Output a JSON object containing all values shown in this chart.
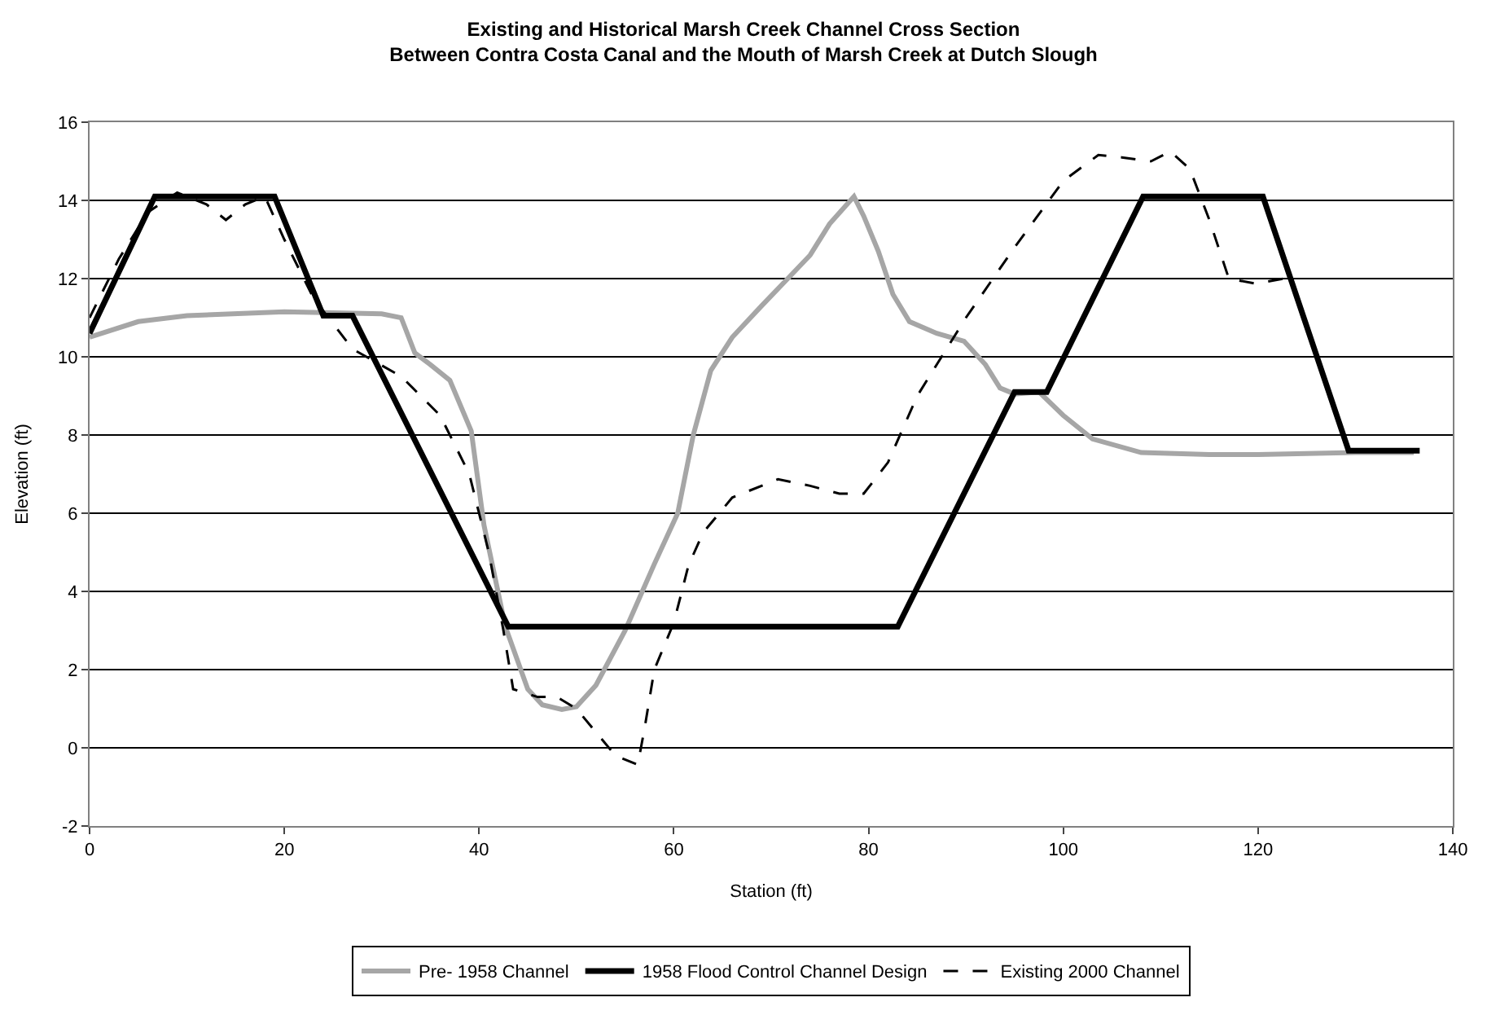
{
  "chart_data": {
    "type": "line",
    "title": "Existing and Historical Marsh Creek Channel Cross Section",
    "subtitle": "Between Contra Costa Canal and the Mouth of Marsh Creek at Dutch Slough",
    "xlabel": "Station (ft)",
    "ylabel": "Elevation (ft)",
    "xlim": [
      0,
      140
    ],
    "xticks": [
      0,
      20,
      40,
      60,
      80,
      100,
      120,
      140
    ],
    "ylim": [
      -2,
      16
    ],
    "yticks": [
      -2,
      0,
      2,
      4,
      6,
      8,
      10,
      12,
      14,
      16
    ],
    "grid": "y",
    "legend": "bottom",
    "marker": "none",
    "series": [
      {
        "name": "Pre- 1958 Channel",
        "color": "#a6a6a6",
        "line_style": "solid",
        "x": [
          0,
          5,
          10,
          20,
          30,
          32,
          33.4,
          35,
          37,
          39.2,
          40.5,
          42.7,
          45,
          46.5,
          48.5,
          50,
          52,
          55,
          58,
          60.4,
          62,
          63.8,
          66,
          69,
          71.7,
          74,
          76,
          78.5,
          79.5,
          81,
          82.5,
          84.2,
          87,
          89.8,
          92,
          93.5,
          95,
          97.5,
          100,
          103,
          108,
          115,
          120,
          130,
          136
        ],
        "values": [
          10.5,
          10.9,
          11.05,
          11.15,
          11.1,
          11.0,
          10.1,
          9.8,
          9.4,
          8.1,
          5.7,
          3.1,
          1.5,
          1.1,
          0.98,
          1.05,
          1.6,
          3.0,
          4.7,
          6.0,
          8.0,
          9.65,
          10.5,
          11.3,
          12.0,
          12.6,
          13.4,
          14.1,
          13.6,
          12.7,
          11.6,
          10.9,
          10.6,
          10.4,
          9.8,
          9.2,
          9.05,
          9.1,
          8.5,
          7.9,
          7.55,
          7.5,
          7.5,
          7.55,
          7.55
        ]
      },
      {
        "name": "1958 Flood Control Channel Design",
        "color": "#000000",
        "line_style": "solid",
        "x": [
          0,
          6.7,
          19,
          24,
          27,
          43,
          83,
          95,
          98.3,
          108.2,
          120.5,
          129.3,
          136.6
        ],
        "values": [
          10.6,
          14.1,
          14.1,
          11.05,
          11.05,
          3.1,
          3.1,
          9.1,
          9.1,
          14.1,
          14.1,
          7.6,
          7.6
        ]
      },
      {
        "name": "Existing 2000 Channel",
        "color": "#000000",
        "line_style": "dashed",
        "x": [
          0,
          3,
          6,
          9,
          12,
          14,
          16,
          18,
          20,
          23,
          27,
          32,
          36,
          39,
          41,
          42.5,
          43.5,
          46,
          48,
          50,
          52,
          54,
          56.3,
          57,
          58,
          60,
          61.5,
          63,
          66,
          70.7,
          74,
          77,
          79.5,
          82,
          85,
          90,
          95,
          100,
          103.6,
          106,
          109,
          111,
          113,
          115,
          117,
          119.8,
          122.6
        ],
        "values": [
          11,
          12.5,
          13.7,
          14.2,
          13.9,
          13.5,
          13.9,
          14.1,
          13.0,
          11.5,
          10.2,
          9.5,
          8.5,
          7.0,
          5.0,
          3.0,
          1.5,
          1.3,
          1.3,
          1.0,
          0.4,
          -0.2,
          -0.43,
          0.5,
          2.0,
          3.2,
          4.66,
          5.5,
          6.4,
          6.87,
          6.7,
          6.5,
          6.5,
          7.3,
          9.0,
          11.0,
          12.8,
          14.5,
          15.16,
          15.1,
          15.0,
          15.25,
          14.8,
          13.5,
          12.0,
          11.87,
          12.0
        ]
      }
    ]
  }
}
